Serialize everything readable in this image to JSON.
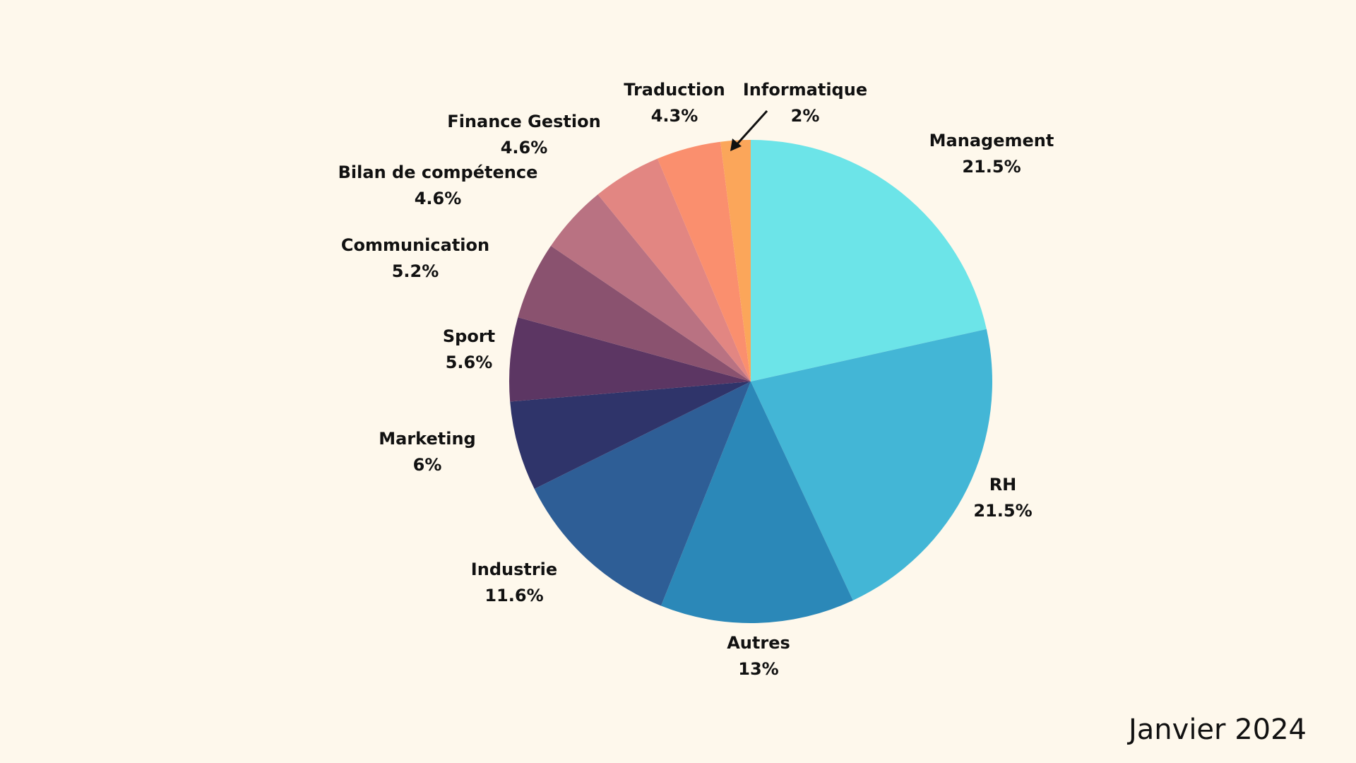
{
  "chart_data": {
    "type": "pie",
    "start": "12 o'clock",
    "direction": "clockwise",
    "slices": [
      {
        "label": "Management",
        "value": 21.5,
        "value_label": "21.5%",
        "color": "#6ce4e8"
      },
      {
        "label": "RH",
        "value": 21.5,
        "value_label": "21.5%",
        "color": "#43b6d6"
      },
      {
        "label": "Autres",
        "value": 13,
        "value_label": "13%",
        "color": "#2b88b8"
      },
      {
        "label": "Industrie",
        "value": 11.6,
        "value_label": "11.6%",
        "color": "#2e5e96"
      },
      {
        "label": "Marketing",
        "value": 6,
        "value_label": "6%",
        "color": "#2f346a"
      },
      {
        "label": "Sport",
        "value": 5.6,
        "value_label": "5.6%",
        "color": "#5c3663"
      },
      {
        "label": "Communication",
        "value": 5.2,
        "value_label": "5.2%",
        "color": "#8a526f"
      },
      {
        "label": "Bilan de compétence",
        "value": 4.6,
        "value_label": "4.6%",
        "color": "#b97282"
      },
      {
        "label": "Finance Gestion",
        "value": 4.6,
        "value_label": "4.6%",
        "color": "#e28682"
      },
      {
        "label": "Traduction",
        "value": 4.3,
        "value_label": "4.3%",
        "color": "#fa8f6e"
      },
      {
        "label": "Informatique",
        "value": 2,
        "value_label": "2%",
        "color": "#fba65a"
      }
    ]
  },
  "footer": {
    "date": "Janvier 2024"
  }
}
